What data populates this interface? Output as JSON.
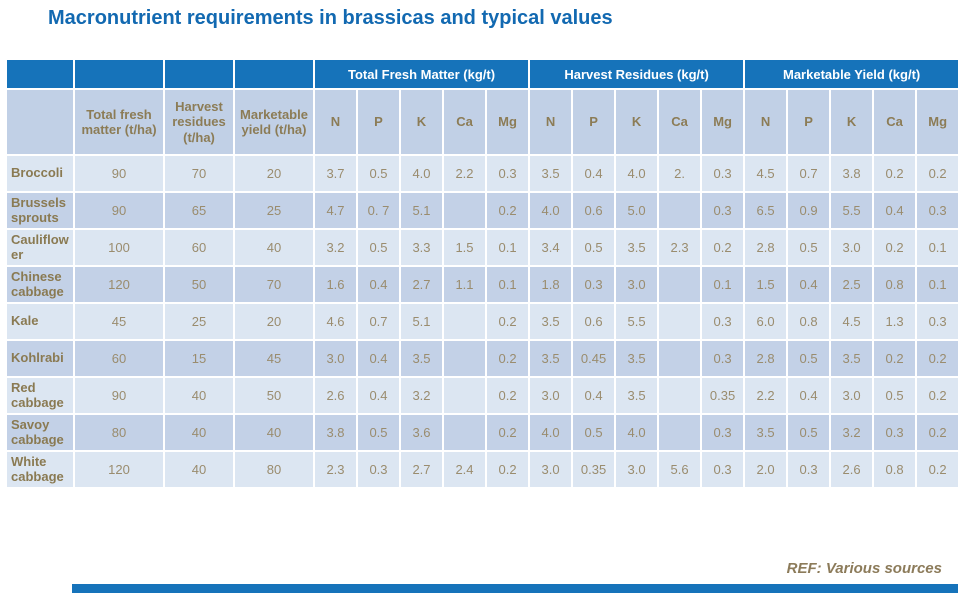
{
  "title": "Macronutrient requirements in brassicas and typical values",
  "colors": {
    "header_blue": "#1673BA",
    "subheader_bg": "#C1D0E6",
    "row_light": "#DCE6F2",
    "row_dark": "#C3D1E7",
    "title_text": "#1269B1",
    "label_text": "#8A7A52",
    "value_text": "#9A8C6E",
    "ref_text": "#8C7B5A"
  },
  "table": {
    "group_headers": [
      {
        "label": "Total Fresh Matter (kg/t)"
      },
      {
        "label": "Harvest Residues (kg/t)"
      },
      {
        "label": "Marketable Yield (kg/t)"
      }
    ],
    "col_headers": [
      "",
      "Total fresh matter (t/ha)",
      "Harvest residues (t/ha)",
      "Marketable yield (t/ha)",
      "N",
      "P",
      "K",
      "Ca",
      "Mg",
      "N",
      "P",
      "K",
      "Ca",
      "Mg",
      "N",
      "P",
      "K",
      "Ca",
      "Mg"
    ],
    "rows": [
      {
        "label": "Broccoli",
        "cells": [
          "90",
          "70",
          "20",
          "3.7",
          "0.5",
          "4.0",
          "2.2",
          "0.3",
          "3.5",
          "0.4",
          "4.0",
          "2.",
          "0.3",
          "4.5",
          "0.7",
          "3.8",
          "0.2",
          "0.2"
        ]
      },
      {
        "label": "Brussels sprouts",
        "cells": [
          "90",
          "65",
          "25",
          "4.7",
          "0. 7",
          "5.1",
          "",
          "0.2",
          "4.0",
          "0.6",
          "5.0",
          "",
          "0.3",
          "6.5",
          "0.9",
          "5.5",
          "0.4",
          "0.3"
        ]
      },
      {
        "label": "Cauliflower",
        "cells": [
          "100",
          "60",
          "40",
          "3.2",
          "0.5",
          "3.3",
          "1.5",
          "0.1",
          "3.4",
          "0.5",
          "3.5",
          "2.3",
          "0.2",
          "2.8",
          "0.5",
          "3.0",
          "0.2",
          "0.1"
        ]
      },
      {
        "label": "Chinese cabbage",
        "cells": [
          "120",
          "50",
          "70",
          "1.6",
          "0.4",
          "2.7",
          "1.1",
          "0.1",
          "1.8",
          "0.3",
          "3.0",
          "",
          "0.1",
          "1.5",
          "0.4",
          "2.5",
          "0.8",
          "0.1"
        ]
      },
      {
        "label": "Kale",
        "cells": [
          "45",
          "25",
          "20",
          "4.6",
          "0.7",
          "5.1",
          "",
          "0.2",
          "3.5",
          "0.6",
          "5.5",
          "",
          "0.3",
          "6.0",
          "0.8",
          "4.5",
          "1.3",
          "0.3"
        ]
      },
      {
        "label": "Kohlrabi",
        "cells": [
          "60",
          "15",
          "45",
          "3.0",
          "0.4",
          "3.5",
          "",
          "0.2",
          "3.5",
          "0.45",
          "3.5",
          "",
          "0.3",
          "2.8",
          "0.5",
          "3.5",
          "0.2",
          "0.2"
        ]
      },
      {
        "label": "Red cabbage",
        "cells": [
          "90",
          "40",
          "50",
          "2.6",
          "0.4",
          "3.2",
          "",
          "0.2",
          "3.0",
          "0.4",
          "3.5",
          "",
          "0.35",
          "2.2",
          "0.4",
          "3.0",
          "0.5",
          "0.2"
        ]
      },
      {
        "label": "Savoy cabbage",
        "cells": [
          "80",
          "40",
          "40",
          "3.8",
          "0.5",
          "3.6",
          "",
          "0.2",
          "4.0",
          "0.5",
          "4.0",
          "",
          "0.3",
          "3.5",
          "0.5",
          "3.2",
          "0.3",
          "0.2"
        ]
      },
      {
        "label": "White cabbage",
        "cells": [
          "120",
          "40",
          "80",
          "2.3",
          "0.3",
          "2.7",
          "2.4",
          "0.2",
          "3.0",
          "0.35",
          "3.0",
          "5.6",
          "0.3",
          "2.0",
          "0.3",
          "2.6",
          "0.8",
          "0.2"
        ]
      }
    ]
  },
  "footer": {
    "reference": "REF: Various sources"
  }
}
